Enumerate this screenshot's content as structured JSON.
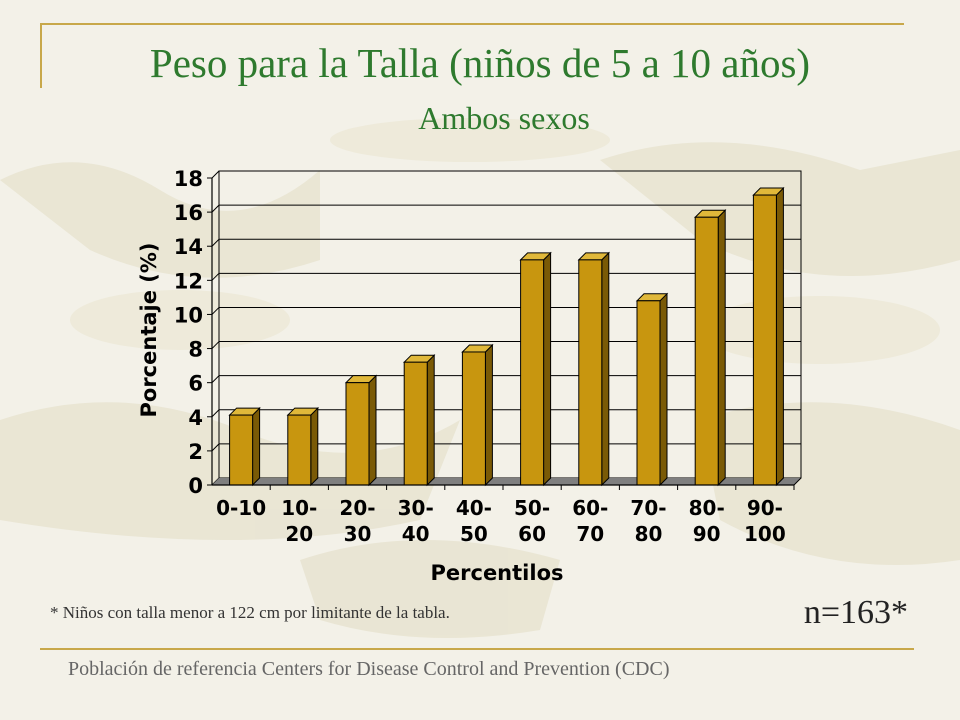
{
  "slide": {
    "title": "Peso para la Talla (niños de 5 a 10 años)",
    "subtitle": "Ambos sexos",
    "footnote": "* Niños con talla menor a 122 cm por limitante de la tabla.",
    "sample_size": "n=163*",
    "source": "Población de referencia Centers for Disease Control and Prevention (CDC)"
  },
  "colors": {
    "title": "#2e7a2e",
    "bar_front": "#c8960f",
    "bar_side": "#7a5a06",
    "bar_top": "#e0b83a",
    "floor": "#7f7f7f",
    "rule": "#c8a84a"
  },
  "chart_data": {
    "type": "bar",
    "style": "3d",
    "categories": [
      [
        "0-10"
      ],
      [
        "10-",
        "20"
      ],
      [
        "20-",
        "30"
      ],
      [
        "30-",
        "40"
      ],
      [
        "40-",
        "50"
      ],
      [
        "50-",
        "60"
      ],
      [
        "60-",
        "70"
      ],
      [
        "70-",
        "80"
      ],
      [
        "80-",
        "90"
      ],
      [
        "90-",
        "100"
      ]
    ],
    "values": [
      4.1,
      4.1,
      6.0,
      7.2,
      7.8,
      13.2,
      13.2,
      10.8,
      15.7,
      17.0
    ],
    "xlabel": "Percentilos",
    "ylabel": "Porcentaje (%)",
    "ylim": [
      0,
      18
    ],
    "yticks": [
      0,
      2,
      4,
      6,
      8,
      10,
      12,
      14,
      16,
      18
    ],
    "grid": true,
    "legend": "none"
  }
}
